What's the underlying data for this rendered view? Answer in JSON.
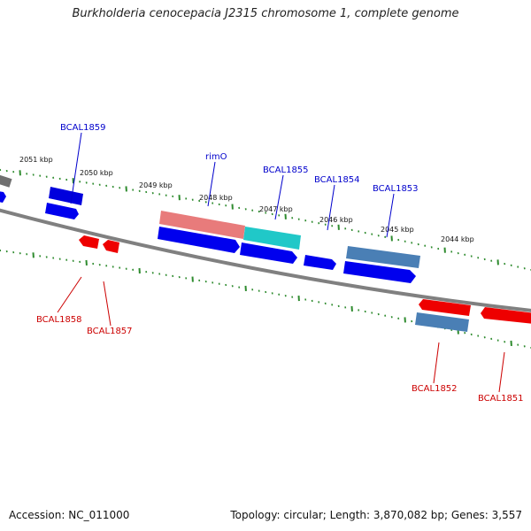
{
  "title": "Burkholderia cenocepacia J2315 chromosome 1, complete genome",
  "footer": {
    "accession": "Accession: NC_011000",
    "summary": "Topology: circular; Length: 3,870,082 bp; Genes: 3,557"
  },
  "colors": {
    "backbone": "#808080",
    "forward_tick": "#2e8b2e",
    "reverse_tick": "#2e8b2e",
    "cds_forward": "#0000ee",
    "cds_reverse": "#ee0000",
    "rna_like": "#4a7fb5",
    "highlight_salmon": "#e87b7b",
    "highlight_cyan": "#20c8c8",
    "label_blue": "#0000cc",
    "label_red": "#cc0000"
  },
  "kbp_labels": [
    "2051 kbp",
    "2050 kbp",
    "2049 kbp",
    "2048 kbp",
    "2047 kbp",
    "2046 kbp",
    "2045 kbp",
    "2044 kbp"
  ],
  "gene_labels": {
    "forward": [
      "BCAL1859",
      "rimO",
      "BCAL1855",
      "BCAL1854",
      "BCAL1853"
    ],
    "reverse": [
      "BCAL1858",
      "BCAL1857",
      "BCAL1852",
      "BCAL1851"
    ]
  }
}
